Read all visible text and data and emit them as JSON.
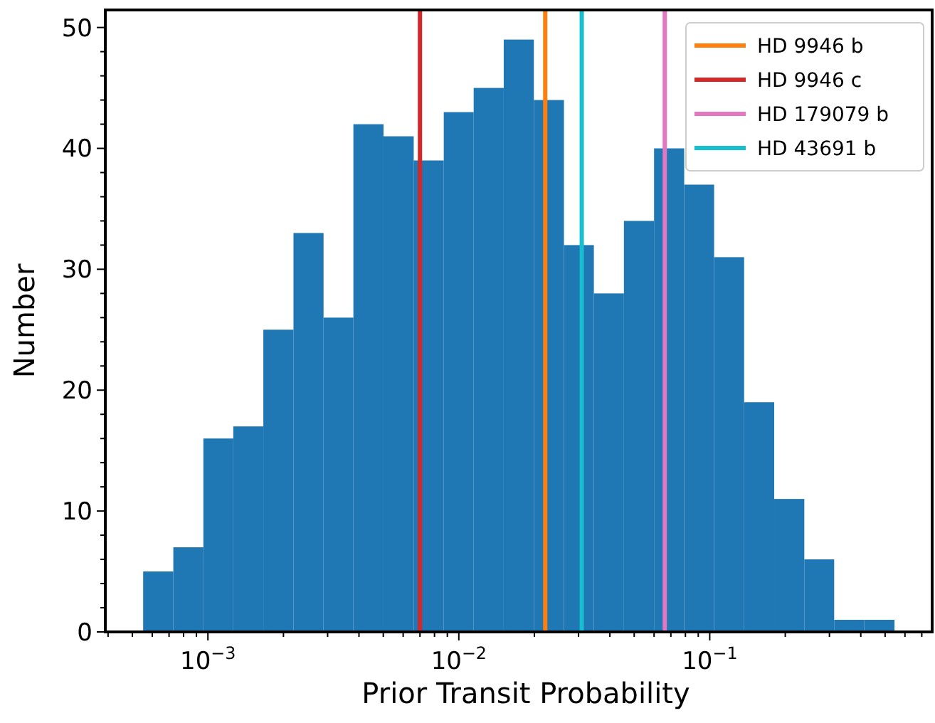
{
  "chart_data": {
    "type": "histogram",
    "xlabel": "Prior Transit Probability",
    "ylabel": "Number",
    "log": "x",
    "color": "#1f77b4",
    "bins": [
      0.000552,
      0.000728,
      0.000959,
      0.001262,
      0.001663,
      0.002193,
      0.00289,
      0.0038,
      0.00501,
      0.00661,
      0.00871,
      0.01146,
      0.0151,
      0.01991,
      0.02624,
      0.03453,
      0.0455,
      0.06,
      0.0791,
      0.1041,
      0.1371,
      0.1807,
      0.2382,
      0.3133,
      0.413,
      0.545
    ],
    "values": [
      5,
      7,
      16,
      17,
      25,
      33,
      26,
      42,
      41,
      39,
      43,
      45,
      49,
      44,
      32,
      28,
      34,
      40,
      37,
      31,
      19,
      11,
      6,
      1,
      1
    ],
    "xlim": [
      0.00039,
      0.77
    ],
    "ylim": [
      0,
      51.45
    ],
    "xticks": [
      {
        "value": 0.0004,
        "label": null
      },
      {
        "value": 0.0005,
        "label": null
      },
      {
        "value": 0.0006,
        "label": null
      },
      {
        "value": 0.0007,
        "label": null
      },
      {
        "value": 0.0008,
        "label": null
      },
      {
        "value": 0.0009,
        "label": null
      },
      {
        "value": 0.001,
        "label": "10$^{−3}$"
      },
      {
        "value": 0.002,
        "label": null
      },
      {
        "value": 0.003,
        "label": null
      },
      {
        "value": 0.004,
        "label": null
      },
      {
        "value": 0.005,
        "label": null
      },
      {
        "value": 0.006,
        "label": null
      },
      {
        "value": 0.007,
        "label": null
      },
      {
        "value": 0.008,
        "label": null
      },
      {
        "value": 0.009,
        "label": null
      },
      {
        "value": 0.01,
        "label": "10$^{−2}$"
      },
      {
        "value": 0.02,
        "label": null
      },
      {
        "value": 0.03,
        "label": null
      },
      {
        "value": 0.04,
        "label": null
      },
      {
        "value": 0.05,
        "label": null
      },
      {
        "value": 0.06,
        "label": null
      },
      {
        "value": 0.07,
        "label": null
      },
      {
        "value": 0.08,
        "label": null
      },
      {
        "value": 0.09,
        "label": null
      },
      {
        "value": 0.1,
        "label": "10$^{−1}$"
      },
      {
        "value": 0.2,
        "label": null
      },
      {
        "value": 0.3,
        "label": null
      },
      {
        "value": 0.4,
        "label": null
      },
      {
        "value": 0.5,
        "label": null
      },
      {
        "value": 0.6,
        "label": null
      },
      {
        "value": 0.7,
        "label": null
      }
    ],
    "yticks": [
      0,
      {
        "value": 2,
        "label": null
      },
      {
        "value": 4,
        "label": null
      },
      {
        "value": 6,
        "label": null
      },
      {
        "value": 8,
        "label": null
      },
      10,
      {
        "value": 12,
        "label": null
      },
      {
        "value": 14,
        "label": null
      },
      {
        "value": 16,
        "label": null
      },
      {
        "value": 18,
        "label": null
      },
      20,
      {
        "value": 22,
        "label": null
      },
      {
        "value": 24,
        "label": null
      },
      {
        "value": 26,
        "label": null
      },
      {
        "value": 28,
        "label": null
      },
      30,
      {
        "value": 32,
        "label": null
      },
      {
        "value": 34,
        "label": null
      },
      {
        "value": 36,
        "label": null
      },
      {
        "value": 38,
        "label": null
      },
      40,
      {
        "value": 42,
        "label": null
      },
      {
        "value": 44,
        "label": null
      },
      {
        "value": 46,
        "label": null
      },
      {
        "value": 48,
        "label": null
      },
      50
    ],
    "series": [
      {
        "type": "line",
        "name": "HD 9946 b",
        "color": "#ff7f0e",
        "x": [
          0.0221,
          0.0221
        ],
        "values": [
          0,
          51.45
        ]
      },
      {
        "type": "line",
        "name": "HD 9946 c",
        "color": "#d62728",
        "x": [
          0.007,
          0.007
        ],
        "values": [
          0,
          51.45
        ]
      },
      {
        "type": "line",
        "name": "HD 179079 b",
        "color": "#e377c2",
        "x": [
          0.0662,
          0.0662
        ],
        "values": [
          0,
          51.45
        ]
      },
      {
        "type": "line",
        "name": "HD 43691 b",
        "color": "#17becf",
        "x": [
          0.0309,
          0.0309
        ],
        "values": [
          0,
          51.45
        ]
      }
    ],
    "legend": "top right",
    "grid": false
  }
}
